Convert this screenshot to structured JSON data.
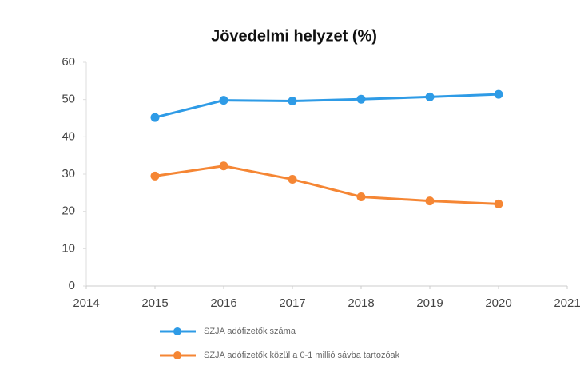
{
  "chart_data": {
    "type": "line",
    "title": "Jövedelmi helyzet (%)",
    "x": [
      2015,
      2016,
      2017,
      2018,
      2019,
      2020
    ],
    "series": [
      {
        "name": "SZJA adófizetők száma",
        "color": "#2e9be6",
        "values": [
          45.2,
          49.8,
          49.6,
          50.1,
          50.7,
          51.4
        ]
      },
      {
        "name": "SZJA adófizetők közül a 0-1 millió sávba tartozóak",
        "color": "#f58634",
        "values": [
          29.5,
          32.2,
          28.6,
          23.9,
          22.8,
          22.0
        ]
      }
    ],
    "xlim": [
      2014,
      2021
    ],
    "xticks": [
      2014,
      2015,
      2016,
      2017,
      2018,
      2019,
      2020,
      2021
    ],
    "ylim": [
      0,
      60
    ],
    "yticks": [
      0,
      10,
      20,
      30,
      40,
      50,
      60
    ],
    "grid": false
  }
}
